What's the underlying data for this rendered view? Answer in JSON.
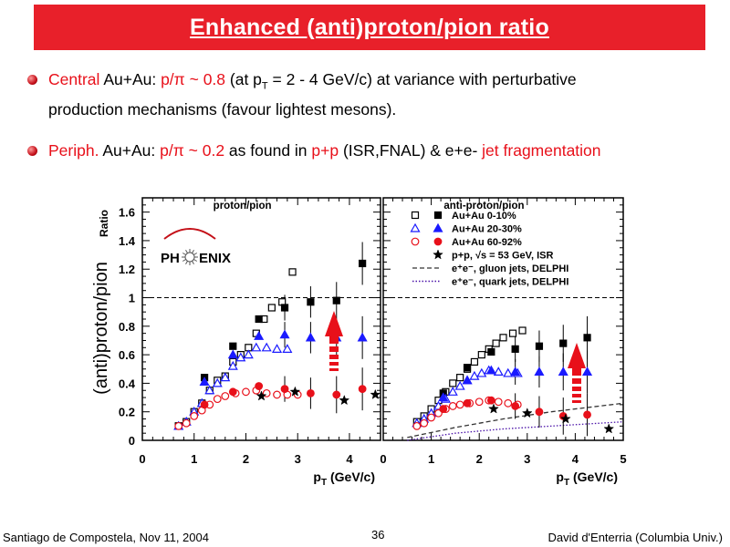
{
  "slide": {
    "title": "Enhanced (anti)proton/pion ratio",
    "bullet1": {
      "p1": "Central",
      "p2": " Au+Au: ",
      "p3": "p/π ~ 0.8",
      "p4": " (at p",
      "p5": "T",
      "p6": " = 2 - 4 GeV/c) at variance with perturbative",
      "line2": "production mechanisms (favour lightest mesons)."
    },
    "bullet2": {
      "p1": "Periph.",
      "p2": " Au+Au: ",
      "p3": "p/π ~ 0.2",
      "p4": "  as found in ",
      "p5": "p+p",
      "p6": " (ISR,FNAL) & e+e- ",
      "p7": "jet fragmentation"
    },
    "footer": {
      "left": "Santiago de Compostela, Nov 11, 2004",
      "page": "36",
      "right": "David d'Enterria (Columbia Univ.)"
    },
    "logo": {
      "left": "PH",
      "right": "ENIX"
    },
    "colors": {
      "title_bar": "#e8202a",
      "accent": "#e8101a",
      "series_blue": "#1a1aff",
      "series_red": "#e8101a"
    }
  },
  "chart_data": [
    {
      "type": "scatter",
      "title": "proton/pion",
      "ylabel": "(anti)proton/pion",
      "ylabel_small": "Ratio",
      "xlabel": "p_T (GeV/c)",
      "xlim": [
        0,
        4.6
      ],
      "ylim": [
        0,
        1.7
      ],
      "xticks": [
        "0",
        "1",
        "2",
        "3",
        "4"
      ],
      "yticks": [
        "0",
        "0.2",
        "0.4",
        "0.6",
        "0.8",
        "1",
        "1.2",
        "1.4",
        "1.6"
      ],
      "reference_line": 1.0,
      "series": [
        {
          "name": "Au+Au 0-10%",
          "marker": "square",
          "color": "#000000",
          "open": [
            [
              0.7,
              0.1
            ],
            [
              0.85,
              0.13
            ],
            [
              1.0,
              0.2
            ],
            [
              1.15,
              0.26
            ],
            [
              1.3,
              0.35
            ],
            [
              1.45,
              0.42
            ],
            [
              1.6,
              0.45
            ],
            [
              1.75,
              0.55
            ],
            [
              1.9,
              0.6
            ],
            [
              2.05,
              0.65
            ],
            [
              2.2,
              0.75
            ],
            [
              2.35,
              0.85
            ],
            [
              2.5,
              0.93
            ],
            [
              2.7,
              0.97
            ],
            [
              2.9,
              1.18
            ]
          ],
          "filled": [
            [
              0.7,
              0.1
            ],
            [
              1.2,
              0.44
            ],
            [
              1.75,
              0.66
            ],
            [
              2.25,
              0.85
            ],
            [
              2.75,
              0.93
            ],
            [
              3.25,
              0.97
            ],
            [
              3.75,
              0.98
            ],
            [
              4.25,
              1.24
            ]
          ]
        },
        {
          "name": "Au+Au 20-30%",
          "marker": "triangle",
          "color": "#1a1aff",
          "open": [
            [
              0.7,
              0.1
            ],
            [
              0.85,
              0.13
            ],
            [
              1.0,
              0.2
            ],
            [
              1.15,
              0.26
            ],
            [
              1.3,
              0.35
            ],
            [
              1.45,
              0.4
            ],
            [
              1.6,
              0.44
            ],
            [
              1.75,
              0.52
            ],
            [
              1.9,
              0.58
            ],
            [
              2.05,
              0.6
            ],
            [
              2.2,
              0.65
            ],
            [
              2.4,
              0.65
            ],
            [
              2.6,
              0.64
            ],
            [
              2.8,
              0.64
            ]
          ],
          "filled": [
            [
              1.2,
              0.41
            ],
            [
              1.75,
              0.6
            ],
            [
              2.25,
              0.73
            ],
            [
              2.75,
              0.74
            ],
            [
              3.25,
              0.72
            ],
            [
              3.75,
              0.72
            ],
            [
              4.25,
              0.72
            ]
          ]
        },
        {
          "name": "Au+Au 60-92%",
          "marker": "circle",
          "color": "#e8101a",
          "open": [
            [
              0.7,
              0.1
            ],
            [
              0.85,
              0.12
            ],
            [
              1.0,
              0.17
            ],
            [
              1.15,
              0.21
            ],
            [
              1.3,
              0.25
            ],
            [
              1.45,
              0.29
            ],
            [
              1.6,
              0.31
            ],
            [
              1.8,
              0.33
            ],
            [
              2.0,
              0.34
            ],
            [
              2.2,
              0.35
            ],
            [
              2.4,
              0.33
            ],
            [
              2.6,
              0.32
            ],
            [
              2.8,
              0.32
            ],
            [
              3.0,
              0.32
            ]
          ],
          "filled": [
            [
              1.2,
              0.25
            ],
            [
              1.75,
              0.34
            ],
            [
              2.25,
              0.38
            ],
            [
              2.75,
              0.36
            ],
            [
              3.25,
              0.33
            ],
            [
              3.75,
              0.32
            ],
            [
              4.25,
              0.36
            ]
          ]
        },
        {
          "name": "p+p, √s = 53 GeV, ISR",
          "marker": "star",
          "color": "#000000",
          "filled": [
            [
              2.3,
              0.31
            ],
            [
              2.95,
              0.34
            ],
            [
              3.9,
              0.28
            ],
            [
              4.5,
              0.32
            ]
          ]
        }
      ],
      "annotation": "red arrow ~0.2 → ~0.8"
    },
    {
      "type": "scatter",
      "title": "anti-proton/pion",
      "xlabel": "p_T (GeV/c)",
      "xlim": [
        0,
        5
      ],
      "ylim": [
        0,
        1.7
      ],
      "xticks": [
        "0",
        "1",
        "2",
        "3",
        "4",
        "5"
      ],
      "legend": [
        "Au+Au 0-10%",
        "Au+Au 20-30%",
        "Au+Au 60-92%",
        "p+p, √s = 53 GeV, ISR",
        "e⁺e⁻, gluon jets, DELPHI",
        "e⁺e⁻, quark jets, DELPHI"
      ],
      "legend_position": "top",
      "series": [
        {
          "name": "Au+Au 0-10%",
          "marker": "square",
          "color": "#000000",
          "open": [
            [
              0.7,
              0.13
            ],
            [
              0.85,
              0.17
            ],
            [
              1.0,
              0.22
            ],
            [
              1.15,
              0.28
            ],
            [
              1.3,
              0.34
            ],
            [
              1.45,
              0.4
            ],
            [
              1.6,
              0.44
            ],
            [
              1.75,
              0.5
            ],
            [
              1.9,
              0.55
            ],
            [
              2.05,
              0.6
            ],
            [
              2.2,
              0.64
            ],
            [
              2.35,
              0.68
            ],
            [
              2.5,
              0.72
            ],
            [
              2.7,
              0.75
            ],
            [
              2.9,
              0.77
            ]
          ],
          "filled": [
            [
              1.25,
              0.33
            ],
            [
              1.75,
              0.51
            ],
            [
              2.25,
              0.62
            ],
            [
              2.75,
              0.64
            ],
            [
              3.25,
              0.66
            ],
            [
              3.75,
              0.68
            ],
            [
              4.25,
              0.72
            ]
          ]
        },
        {
          "name": "Au+Au 20-30%",
          "marker": "triangle",
          "color": "#1a1aff",
          "open": [
            [
              0.7,
              0.12
            ],
            [
              0.85,
              0.15
            ],
            [
              1.0,
              0.19
            ],
            [
              1.15,
              0.24
            ],
            [
              1.3,
              0.29
            ],
            [
              1.45,
              0.34
            ],
            [
              1.6,
              0.38
            ],
            [
              1.75,
              0.42
            ],
            [
              1.9,
              0.45
            ],
            [
              2.05,
              0.47
            ],
            [
              2.2,
              0.49
            ],
            [
              2.4,
              0.48
            ],
            [
              2.6,
              0.47
            ],
            [
              2.8,
              0.47
            ]
          ],
          "filled": [
            [
              1.25,
              0.3
            ],
            [
              1.75,
              0.42
            ],
            [
              2.25,
              0.49
            ],
            [
              2.75,
              0.48
            ],
            [
              3.25,
              0.48
            ],
            [
              3.75,
              0.48
            ],
            [
              4.25,
              0.48
            ]
          ]
        },
        {
          "name": "Au+Au 60-92%",
          "marker": "circle",
          "color": "#e8101a",
          "open": [
            [
              0.7,
              0.1
            ],
            [
              0.85,
              0.12
            ],
            [
              1.0,
              0.16
            ],
            [
              1.15,
              0.19
            ],
            [
              1.3,
              0.22
            ],
            [
              1.45,
              0.24
            ],
            [
              1.6,
              0.25
            ],
            [
              1.8,
              0.26
            ],
            [
              2.0,
              0.27
            ],
            [
              2.2,
              0.28
            ],
            [
              2.4,
              0.27
            ],
            [
              2.6,
              0.26
            ],
            [
              2.8,
              0.25
            ]
          ],
          "filled": [
            [
              1.25,
              0.22
            ],
            [
              1.75,
              0.26
            ],
            [
              2.25,
              0.28
            ],
            [
              2.75,
              0.24
            ],
            [
              3.25,
              0.2
            ],
            [
              3.75,
              0.17
            ],
            [
              4.25,
              0.18
            ]
          ]
        },
        {
          "name": "p+p, √s = 53 GeV, ISR",
          "marker": "star",
          "color": "#000000",
          "filled": [
            [
              2.3,
              0.22
            ],
            [
              3.0,
              0.19
            ],
            [
              3.8,
              0.15
            ],
            [
              4.7,
              0.08
            ]
          ]
        },
        {
          "name": "e⁺e⁻, gluon jets, DELPHI",
          "style": "dashed",
          "color": "#333333",
          "line": [
            [
              0.5,
              0.02
            ],
            [
              1.5,
              0.09
            ],
            [
              2.5,
              0.15
            ],
            [
              3.5,
              0.2
            ],
            [
              4.5,
              0.24
            ],
            [
              5.0,
              0.26
            ]
          ]
        },
        {
          "name": "e⁺e⁻, quark jets, DELPHI",
          "style": "dotted",
          "color": "#4a12a8",
          "line": [
            [
              0.5,
              0.0
            ],
            [
              1.5,
              0.05
            ],
            [
              2.5,
              0.08
            ],
            [
              3.5,
              0.1
            ],
            [
              4.5,
              0.12
            ],
            [
              5.0,
              0.13
            ]
          ]
        }
      ],
      "annotation": "red arrow"
    }
  ]
}
